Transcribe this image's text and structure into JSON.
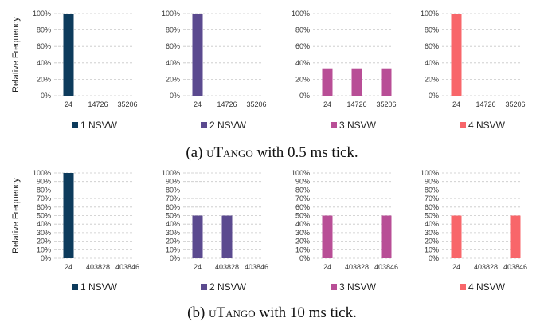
{
  "captions": [
    {
      "prefix": "(a) ",
      "name": "uTango",
      "suffix": " with 0.5 ms tick."
    },
    {
      "prefix": "(b) ",
      "name": "uTango",
      "suffix": " with 10 ms tick."
    }
  ],
  "chart_data": [
    {
      "type": "bar",
      "panel": "a1",
      "ylabel": "Relative Frequency",
      "yticks": [
        "0%",
        "20%",
        "40%",
        "60%",
        "80%",
        "100%"
      ],
      "ylim": [
        0,
        100
      ],
      "grid": true,
      "categories": [
        "24",
        "14726",
        "35206"
      ],
      "series": [
        {
          "name": "1 NSVW",
          "color": "#0d3b5c",
          "values": [
            100,
            0,
            0
          ]
        }
      ]
    },
    {
      "type": "bar",
      "panel": "a2",
      "ylabel": "",
      "yticks": [
        "0%",
        "20%",
        "40%",
        "60%",
        "80%",
        "100%"
      ],
      "ylim": [
        0,
        100
      ],
      "grid": true,
      "categories": [
        "24",
        "14726",
        "35206"
      ],
      "series": [
        {
          "name": "2 NSVW",
          "color": "#5b4a8f",
          "values": [
            100,
            0,
            0
          ]
        }
      ]
    },
    {
      "type": "bar",
      "panel": "a3",
      "ylabel": "",
      "yticks": [
        "0%",
        "20%",
        "40%",
        "60%",
        "80%",
        "100%"
      ],
      "ylim": [
        0,
        100
      ],
      "grid": true,
      "categories": [
        "24",
        "14726",
        "35206"
      ],
      "series": [
        {
          "name": "3 NSVW",
          "color": "#b84e96",
          "values": [
            33.3,
            33.3,
            33.3
          ]
        }
      ]
    },
    {
      "type": "bar",
      "panel": "a4",
      "ylabel": "",
      "yticks": [
        "0%",
        "20%",
        "40%",
        "60%",
        "80%",
        "100%"
      ],
      "ylim": [
        0,
        100
      ],
      "grid": true,
      "categories": [
        "24",
        "14726",
        "35206"
      ],
      "series": [
        {
          "name": "4 NSVW",
          "color": "#f8666a",
          "values": [
            100,
            0,
            0
          ]
        }
      ]
    },
    {
      "type": "bar",
      "panel": "b1",
      "ylabel": "Relative Frequency",
      "yticks": [
        "0%",
        "10%",
        "20%",
        "30%",
        "40%",
        "50%",
        "60%",
        "70%",
        "80%",
        "90%",
        "100%"
      ],
      "ylim": [
        0,
        100
      ],
      "grid": true,
      "categories": [
        "24",
        "403828",
        "403846"
      ],
      "series": [
        {
          "name": "1 NSVW",
          "color": "#0d3b5c",
          "values": [
            100,
            0,
            0
          ]
        }
      ]
    },
    {
      "type": "bar",
      "panel": "b2",
      "ylabel": "",
      "yticks": [
        "0%",
        "10%",
        "20%",
        "30%",
        "40%",
        "50%",
        "60%",
        "70%",
        "80%",
        "90%",
        "100%"
      ],
      "ylim": [
        0,
        100
      ],
      "grid": true,
      "categories": [
        "24",
        "403828",
        "403846"
      ],
      "series": [
        {
          "name": "2 NSVW",
          "color": "#5b4a8f",
          "values": [
            50,
            50,
            0
          ]
        }
      ]
    },
    {
      "type": "bar",
      "panel": "b3",
      "ylabel": "",
      "yticks": [
        "0%",
        "10%",
        "20%",
        "30%",
        "40%",
        "50%",
        "60%",
        "70%",
        "80%",
        "90%",
        "100%"
      ],
      "ylim": [
        0,
        100
      ],
      "grid": true,
      "categories": [
        "24",
        "403828",
        "403846"
      ],
      "series": [
        {
          "name": "3 NSVW",
          "color": "#b84e96",
          "values": [
            50,
            0,
            50
          ]
        }
      ]
    },
    {
      "type": "bar",
      "panel": "b4",
      "ylabel": "",
      "yticks": [
        "0%",
        "10%",
        "20%",
        "30%",
        "40%",
        "50%",
        "60%",
        "70%",
        "80%",
        "90%",
        "100%"
      ],
      "ylim": [
        0,
        100
      ],
      "grid": true,
      "categories": [
        "24",
        "403828",
        "403846"
      ],
      "series": [
        {
          "name": "4 NSVW",
          "color": "#f8666a",
          "values": [
            50,
            0,
            50
          ]
        }
      ]
    }
  ]
}
